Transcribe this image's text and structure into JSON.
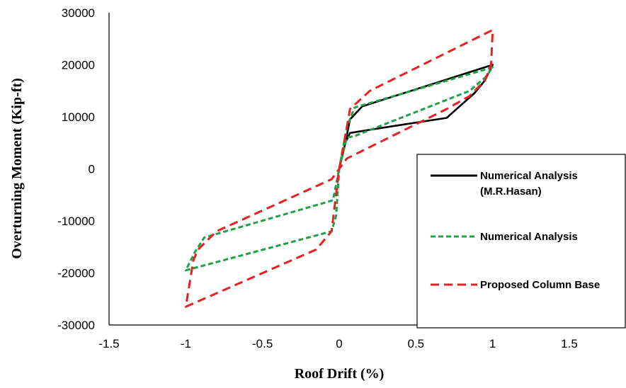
{
  "chart_data": {
    "type": "line",
    "title": "",
    "xlabel": "Roof Drift (%)",
    "ylabel": "Overturning Moment (Kip-ft)",
    "xlim": [
      -1.5,
      1.5
    ],
    "ylim": [
      -30000,
      30000
    ],
    "xticks": [
      "-1.5",
      "-1",
      "-0.5",
      "0",
      "0.5",
      "1",
      "1.5"
    ],
    "yticks": [
      "30000",
      "20000",
      "10000",
      "0",
      "-10000",
      "-20000",
      "-30000"
    ],
    "grid": false,
    "legend_position": "right",
    "series": [
      {
        "name": "Numerical Analysis (M.R.Hasan)",
        "legend_lines": [
          "Numerical Analysis",
          "(M.R.Hasan)"
        ],
        "color": "#000000",
        "dash": "solid",
        "x": [
          0,
          0.04,
          0.07,
          0.15,
          1.0,
          0.95,
          0.88,
          0.7,
          0.35,
          0.07,
          0.04,
          0
        ],
        "y": [
          0,
          5000,
          9500,
          12000,
          20000,
          17000,
          14500,
          9800,
          8200,
          6900,
          5000,
          0
        ]
      },
      {
        "name": "Numerical Analysis",
        "legend_lines": [
          "Numerical Analysis"
        ],
        "color": "#21a04a",
        "dash": "dashed",
        "x": [
          0,
          0.05,
          0.1,
          1.0,
          0.95,
          0.85,
          0.1,
          0.05,
          0,
          -0.04,
          -0.07,
          -0.8,
          -0.88,
          -0.94,
          -1.0,
          -0.05,
          -0.02,
          0
        ],
        "y": [
          0,
          8000,
          11800,
          19500,
          17500,
          15000,
          6300,
          6000,
          0,
          -6000,
          -6300,
          -12500,
          -13200,
          -16000,
          -19500,
          -12000,
          -9000,
          0
        ]
      },
      {
        "name": "Proposed Column Base",
        "legend_lines": [
          "Proposed Column Base"
        ],
        "color": "#e82020",
        "dash": "dashed",
        "x": [
          0,
          0.05,
          0.07,
          0.2,
          1.0,
          0.99,
          0.95,
          0.85,
          0.7,
          0.05,
          0,
          -0.05,
          -0.8,
          -0.92,
          -0.95,
          -1.0,
          -0.15,
          -0.05,
          0
        ],
        "y": [
          0,
          8000,
          11500,
          15000,
          26700,
          20000,
          17000,
          14000,
          11500,
          2000,
          0,
          -2000,
          -12000,
          -15500,
          -17500,
          -26500,
          -15500,
          -12000,
          0
        ]
      }
    ]
  }
}
